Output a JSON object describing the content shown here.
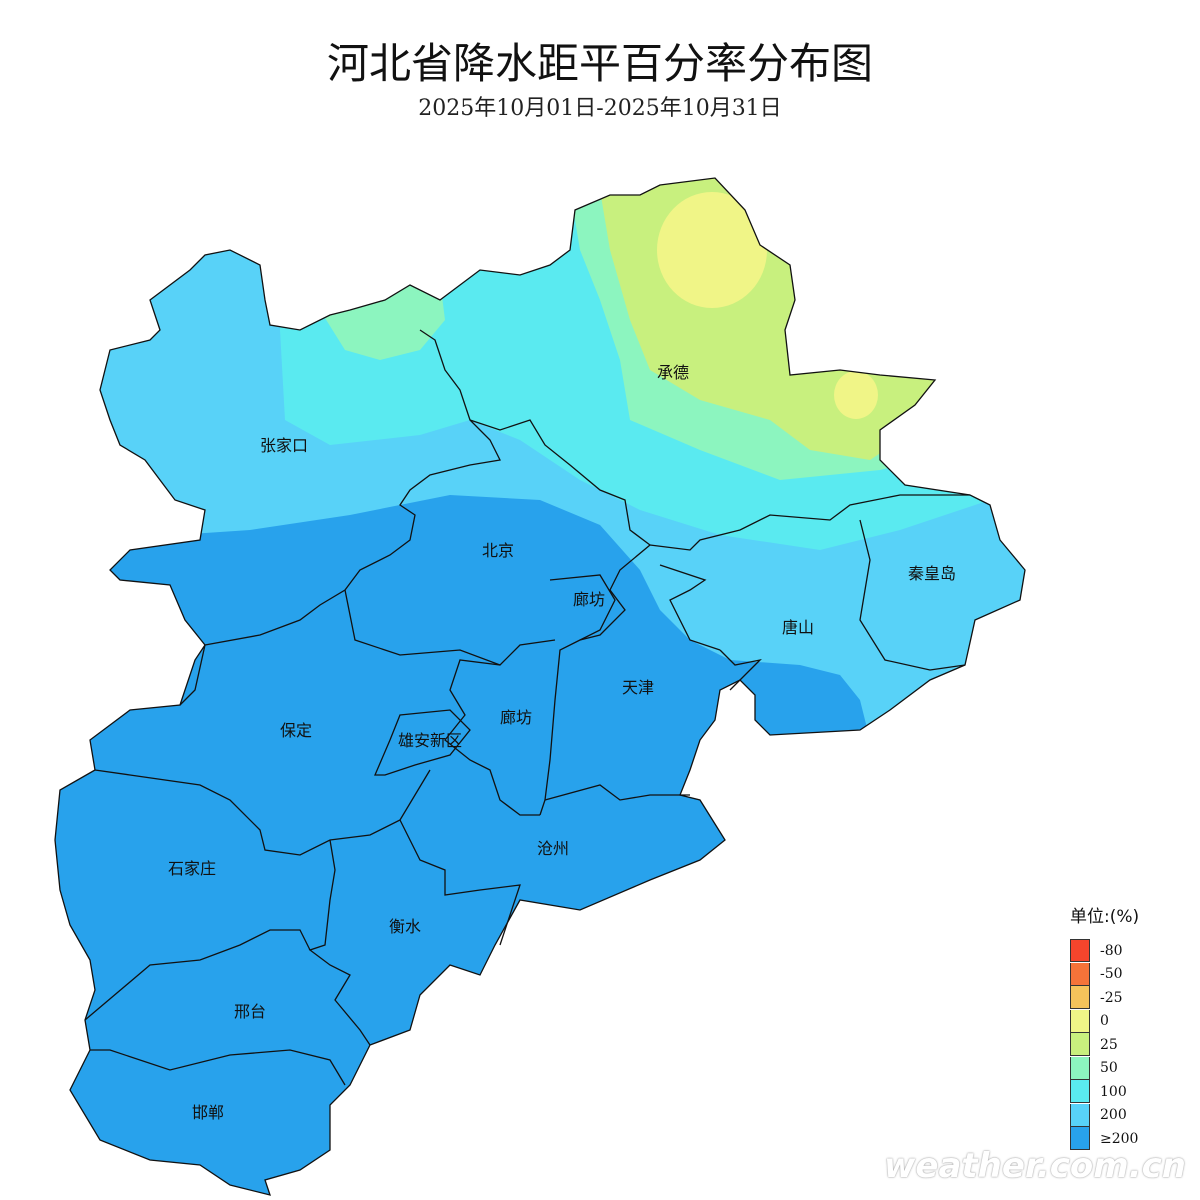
{
  "title": "河北省降水距平百分率分布图",
  "subtitle": "2025年10月01日-2025年10月31日",
  "cities": [
    {
      "name": "张家口"
    },
    {
      "name": "承德"
    },
    {
      "name": "北京"
    },
    {
      "name": "秦皇岛"
    },
    {
      "name": "唐山"
    },
    {
      "name": "廊坊"
    },
    {
      "name": "天津"
    },
    {
      "name": "保定"
    },
    {
      "name": "雄安新区"
    },
    {
      "name": "廊坊"
    },
    {
      "name": "沧州"
    },
    {
      "name": "石家庄"
    },
    {
      "name": "衡水"
    },
    {
      "name": "邢台"
    },
    {
      "name": "邯郸"
    }
  ],
  "legend": {
    "title": "单位:(%)",
    "items": [
      {
        "label": "-80",
        "color": "#f4452c"
      },
      {
        "label": "-50",
        "color": "#f57339"
      },
      {
        "label": "-25",
        "color": "#f5c35b"
      },
      {
        "label": "0",
        "color": "#f0f587"
      },
      {
        "label": "25",
        "color": "#c8f07e"
      },
      {
        "label": "50",
        "color": "#8cf5bf"
      },
      {
        "label": "100",
        "color": "#5aeaf0"
      },
      {
        "label": "200",
        "color": "#58d2f8"
      },
      {
        "label": "≥200",
        "color": "#28a2ec"
      }
    ]
  },
  "watermark": "weather.com.cn"
}
